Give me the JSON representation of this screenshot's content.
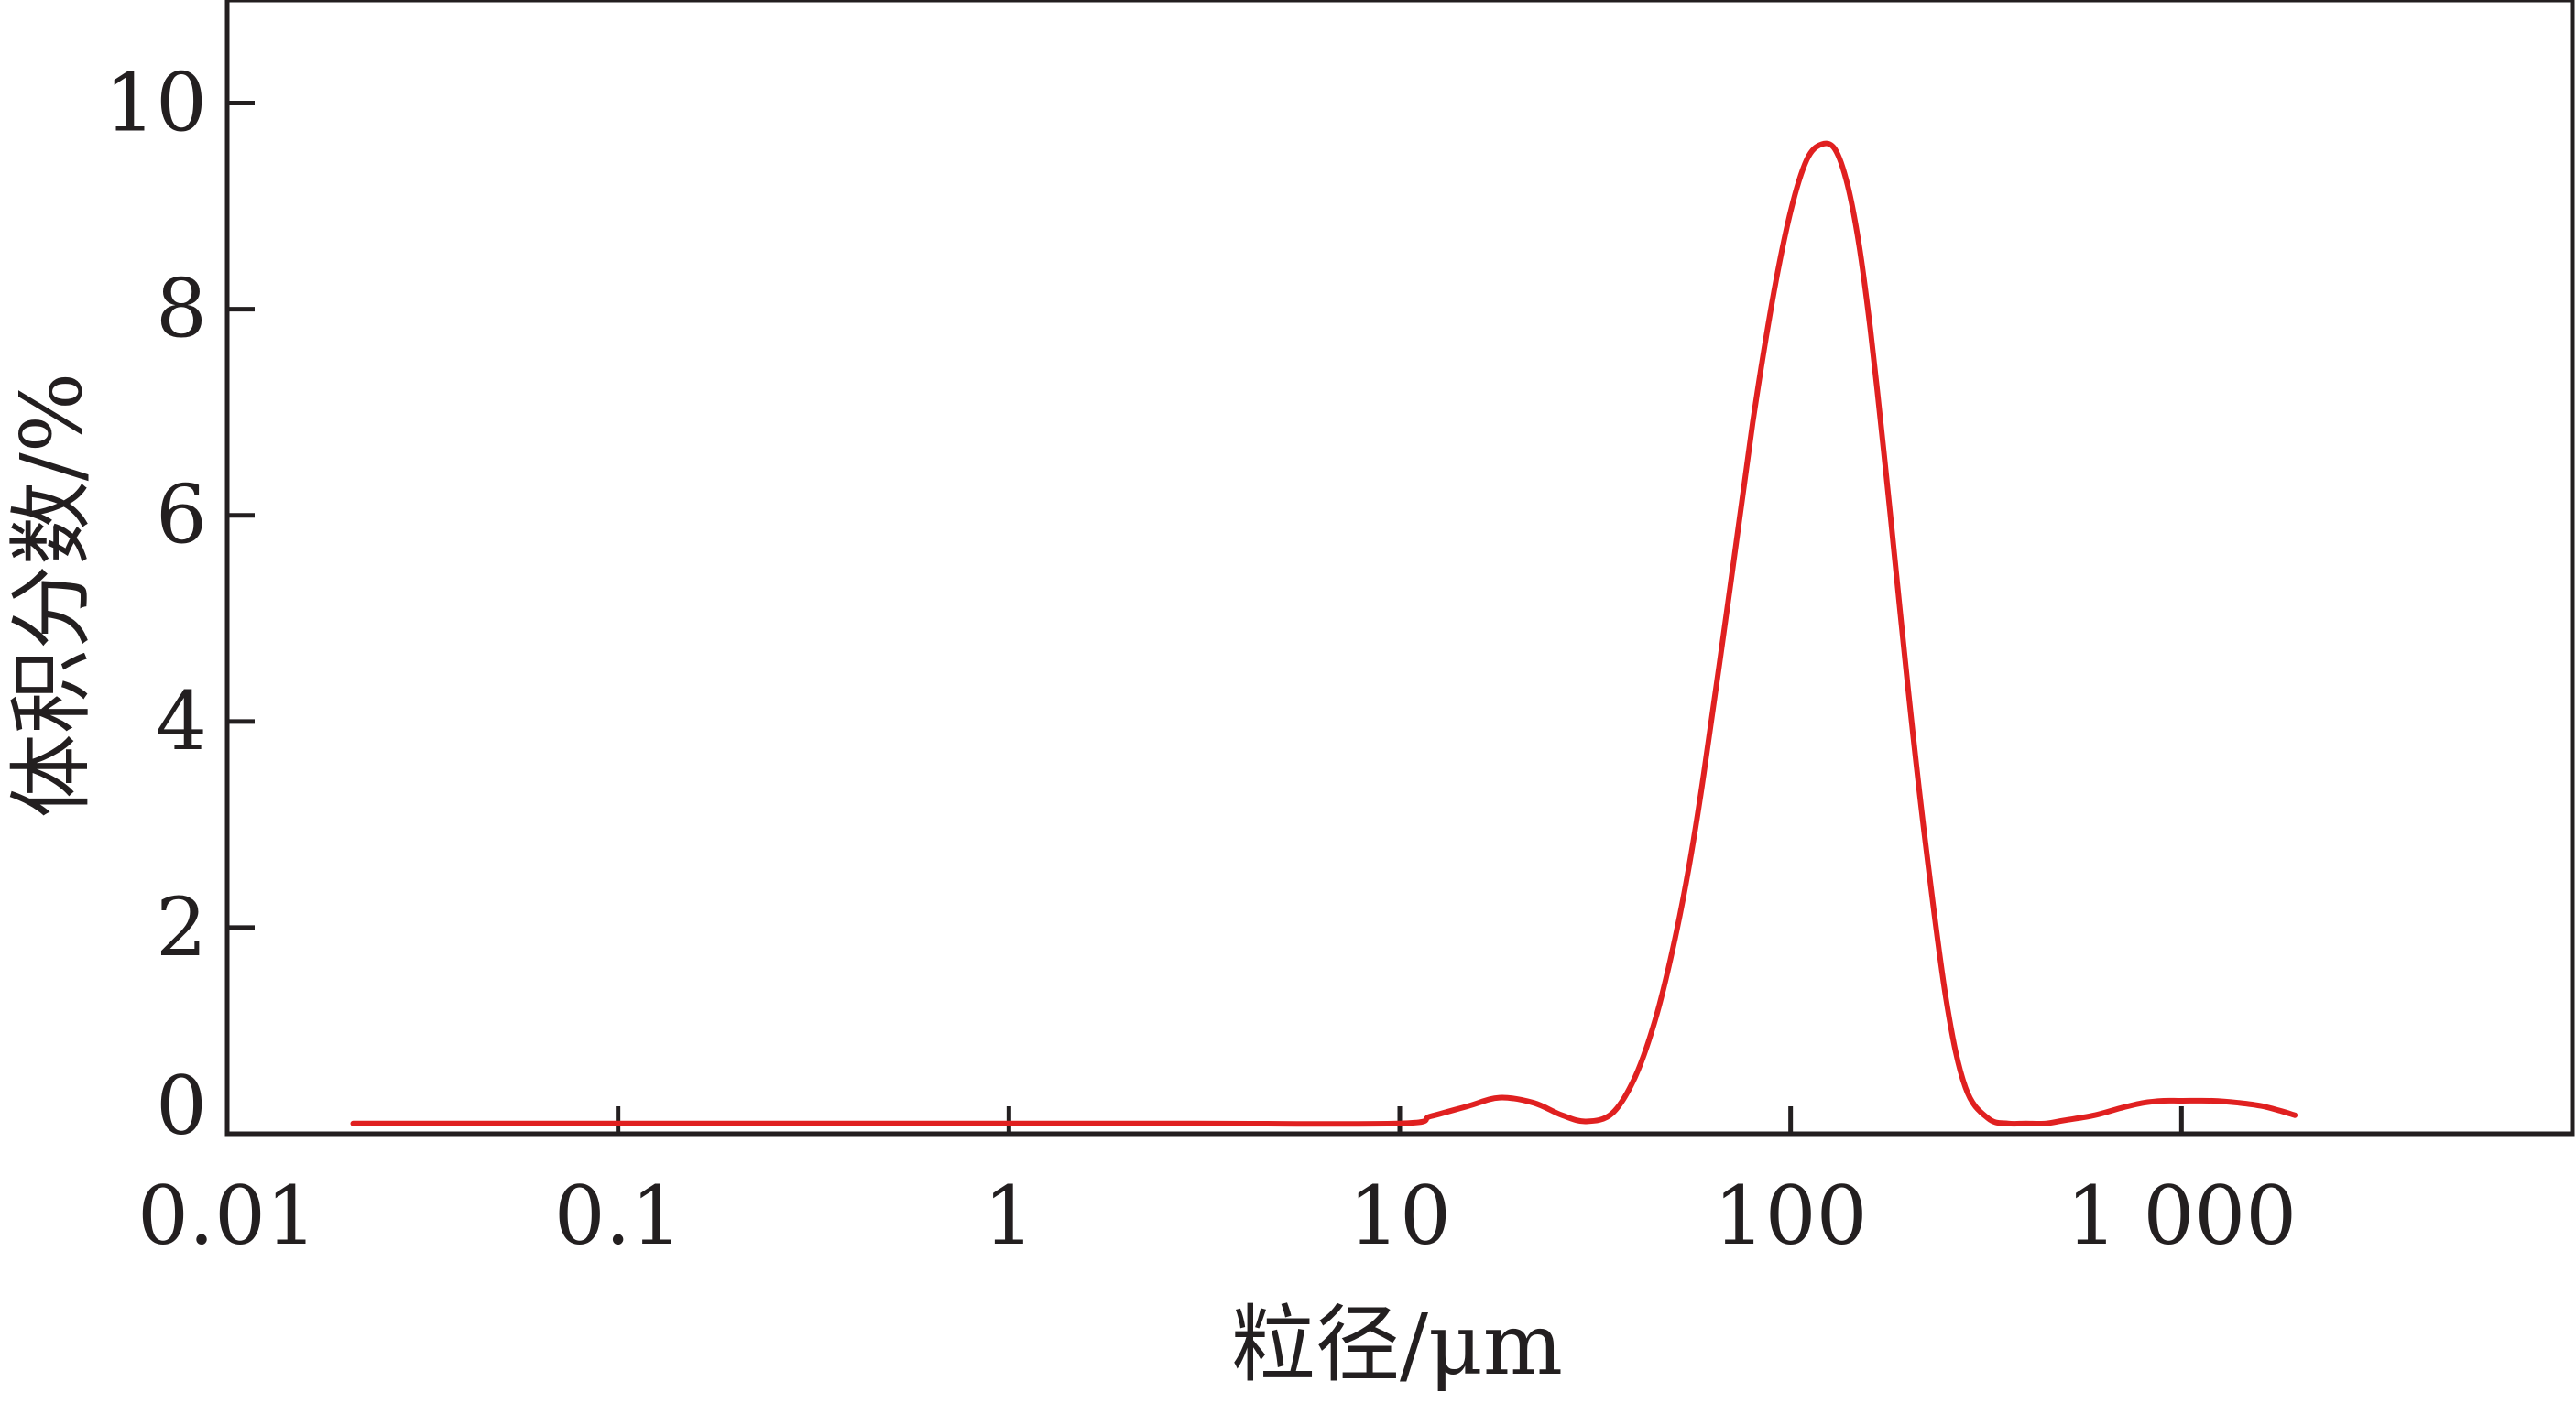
{
  "chart_data": {
    "type": "line",
    "title": "",
    "xlabel": "粒径/μm",
    "ylabel": "体积分数/%",
    "x_scale": "log",
    "xlim": [
      0.01,
      10000
    ],
    "ylim": [
      0,
      11
    ],
    "x_ticks": [
      0.01,
      0.1,
      1,
      10,
      100,
      1000
    ],
    "x_tick_labels": [
      "0.01",
      "0.1",
      "1",
      "10",
      "100",
      "1 000"
    ],
    "y_ticks": [
      0,
      2,
      4,
      6,
      8,
      10
    ],
    "y_tick_labels": [
      "0",
      "2",
      "4",
      "6",
      "8",
      "10"
    ],
    "grid": false,
    "legend": "none",
    "series_color": "#e02020",
    "series": [
      {
        "x": [
          0.021,
          0.05,
          0.1,
          0.3,
          1,
          3,
          10,
          12,
          15,
          18,
          22,
          26,
          30,
          35,
          40,
          45,
          50,
          55,
          60,
          70,
          80,
          90,
          100,
          110,
          120,
          130,
          140,
          150,
          160,
          170,
          180,
          200,
          220,
          250,
          280,
          320,
          360,
          400,
          450,
          500,
          600,
          700,
          800,
          900,
          1000,
          1200,
          1400,
          1600,
          1800,
          1950
        ],
        "y": [
          0.1,
          0.1,
          0.1,
          0.1,
          0.1,
          0.1,
          0.1,
          0.17,
          0.27,
          0.35,
          0.3,
          0.18,
          0.12,
          0.2,
          0.55,
          1.1,
          1.8,
          2.6,
          3.5,
          5.3,
          6.9,
          8.1,
          8.95,
          9.45,
          9.6,
          9.55,
          9.2,
          8.6,
          7.8,
          6.9,
          6.0,
          4.3,
          2.9,
          1.3,
          0.45,
          0.15,
          0.1,
          0.1,
          0.1,
          0.13,
          0.18,
          0.25,
          0.3,
          0.32,
          0.32,
          0.32,
          0.3,
          0.27,
          0.22,
          0.18
        ]
      }
    ]
  }
}
